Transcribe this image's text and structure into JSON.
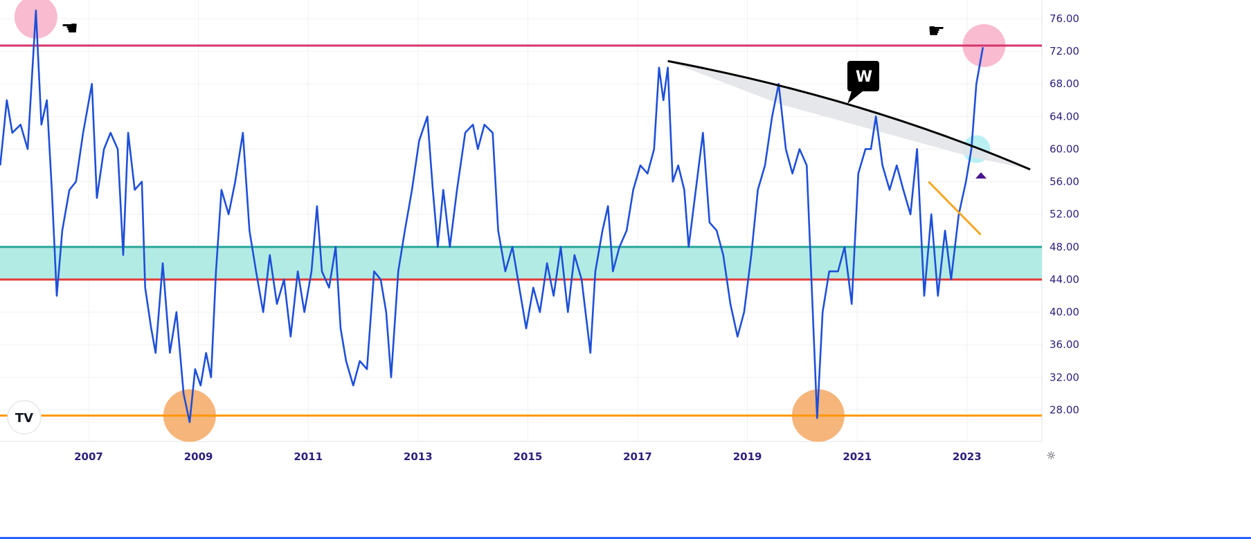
{
  "chart_data": {
    "type": "line",
    "title": "",
    "xlabel": "",
    "ylabel": "",
    "ylim": [
      23.5,
      78.5
    ],
    "xlim": [
      2005.39,
      2024.3
    ],
    "grid": true,
    "x_ticks": [
      "2007",
      "2009",
      "2011",
      "2013",
      "2015",
      "2017",
      "2019",
      "2021",
      "2023"
    ],
    "y_ticks": [
      "76.00",
      "72.00",
      "68.00",
      "64.00",
      "60.00",
      "56.00",
      "52.00",
      "48.00",
      "44.00",
      "40.00",
      "36.00",
      "32.00",
      "28.00"
    ],
    "series": [
      {
        "color": "#1e4fd8",
        "x": [
          2005.39,
          2005.51,
          2005.61,
          2005.76,
          2005.89,
          2006.04,
          2006.14,
          2006.24,
          2006.33,
          2006.42,
          2006.52,
          2006.65,
          2006.77,
          2006.9,
          2007.06,
          2007.15,
          2007.28,
          2007.4,
          2007.53,
          2007.63,
          2007.72,
          2007.84,
          2007.97,
          2008.03,
          2008.14,
          2008.22,
          2008.35,
          2008.48,
          2008.6,
          2008.73,
          2008.84,
          2008.94,
          2009.04,
          2009.14,
          2009.23,
          2009.32,
          2009.42,
          2009.55,
          2009.67,
          2009.81,
          2009.93,
          2010.05,
          2010.18,
          2010.3,
          2010.43,
          2010.56,
          2010.68,
          2010.81,
          2010.93,
          2011.06,
          2011.16,
          2011.25,
          2011.38,
          2011.5,
          2011.59,
          2011.69,
          2011.82,
          2011.94,
          2012.07,
          2012.2,
          2012.32,
          2012.42,
          2012.51,
          2012.64,
          2012.76,
          2012.89,
          2013.02,
          2013.17,
          2013.27,
          2013.36,
          2013.46,
          2013.58,
          2013.71,
          2013.86,
          2014.0,
          2014.09,
          2014.21,
          2014.36,
          2014.46,
          2014.59,
          2014.72,
          2014.87,
          2014.97,
          2015.1,
          2015.22,
          2015.35,
          2015.47,
          2015.6,
          2015.73,
          2015.85,
          2015.98,
          2016.14,
          2016.23,
          2016.36,
          2016.46,
          2016.55,
          2016.67,
          2016.8,
          2016.92,
          2017.05,
          2017.18,
          2017.3,
          2017.39,
          2017.47,
          2017.55,
          2017.64,
          2017.74,
          2017.85,
          2017.93,
          2018.06,
          2018.19,
          2018.31,
          2018.44,
          2018.56,
          2018.69,
          2018.82,
          2018.94,
          2019.07,
          2019.19,
          2019.32,
          2019.45,
          2019.57,
          2019.7,
          2019.82,
          2019.95,
          2020.08,
          2020.16,
          2020.27,
          2020.37,
          2020.49,
          2020.65,
          2020.77,
          2020.9,
          2021.02,
          2021.15,
          2021.25,
          2021.34,
          2021.46,
          2021.59,
          2021.72,
          2021.84,
          2021.97,
          2022.09,
          2022.22,
          2022.35,
          2022.47,
          2022.6,
          2022.71,
          2022.85,
          2022.98,
          2023.08,
          2023.17,
          2023.29
        ],
        "y": [
          58,
          66,
          62,
          63,
          60,
          77,
          63,
          66,
          55,
          42,
          50,
          55,
          56,
          62,
          68,
          54,
          60,
          62,
          60,
          47,
          62,
          55,
          56,
          43,
          38,
          35,
          46,
          35,
          40,
          30,
          26.5,
          33,
          31,
          35,
          32,
          45,
          55,
          52,
          56,
          62,
          50,
          45,
          40,
          47,
          41,
          44,
          37,
          45,
          40,
          45,
          53,
          45,
          43,
          48,
          38,
          34,
          31,
          34,
          33,
          45,
          44,
          40,
          32,
          45,
          50,
          55,
          61,
          64,
          55,
          48,
          55,
          48,
          55,
          62,
          63,
          60,
          63,
          62,
          50,
          45,
          48,
          42,
          38,
          43,
          40,
          46,
          42,
          48,
          40,
          47,
          44,
          35,
          45,
          50,
          53,
          45,
          48,
          50,
          55,
          58,
          57,
          60,
          70,
          66,
          70,
          56,
          58,
          55,
          48,
          55,
          62,
          51,
          50,
          47,
          41,
          37,
          40,
          47,
          55,
          58,
          64,
          68,
          60,
          57,
          60,
          58,
          45,
          27,
          40,
          45,
          45,
          48,
          41,
          57,
          60,
          60,
          64,
          58,
          55,
          58,
          55,
          52,
          60,
          42,
          52,
          42,
          50,
          44,
          52,
          56,
          60,
          68,
          72.5
        ]
      }
    ],
    "horizontal_lines": [
      {
        "value": 72.7,
        "color": "#d6336c"
      },
      {
        "value": 48.0,
        "color": "#26a69a"
      },
      {
        "value": 44.0,
        "color": "#e53935"
      },
      {
        "value": 27.3,
        "color": "#ff9800"
      }
    ],
    "band": {
      "from": 44.0,
      "to": 48.0,
      "color": "#b2ebe4"
    },
    "annotations": {
      "resistance_trendline": {
        "from": [
          2017.55,
          70.8
        ],
        "to": [
          2024.15,
          57.5
        ],
        "color": "#000000"
      },
      "falling_trendline": {
        "from": [
          2022.3,
          56.0
        ],
        "to": [
          2023.25,
          49.5
        ],
        "color": "#f5a623"
      },
      "circles": [
        {
          "at": [
            2006.04,
            76.2
          ],
          "color": "#f8bbd0"
        },
        {
          "at": [
            2023.31,
            72.7
          ],
          "color": "#f8bbd0"
        },
        {
          "at": [
            2023.17,
            60.0
          ],
          "color": "#b9f0f4"
        },
        {
          "at": [
            2008.84,
            27.3
          ],
          "color": "#f6b57a"
        },
        {
          "at": [
            2020.29,
            27.3
          ],
          "color": "#f6b57a"
        }
      ],
      "callout_label": "W",
      "triangle_color": "#4a148c",
      "pointer_icons": [
        "hand-pointing-left-icon",
        "hand-pointing-right-icon"
      ]
    }
  },
  "logo": "TV"
}
